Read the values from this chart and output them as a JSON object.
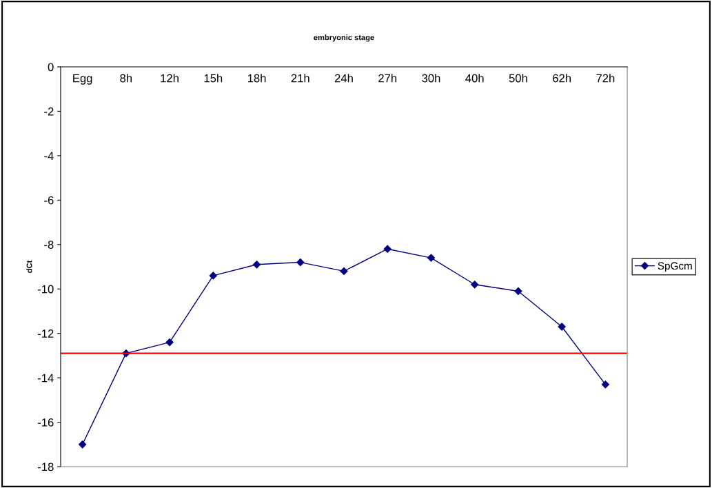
{
  "chart_data": {
    "type": "line",
    "title": "embryonic stage",
    "ylabel": "dCt",
    "categories": [
      "Egg",
      "8h",
      "12h",
      "15h",
      "18h",
      "21h",
      "24h",
      "27h",
      "30h",
      "40h",
      "50h",
      "62h",
      "72h"
    ],
    "series": [
      {
        "name": "SpGcm",
        "color": "#000080",
        "values": [
          -17.0,
          -12.9,
          -12.4,
          -9.4,
          -8.9,
          -8.8,
          -9.2,
          -8.2,
          -8.6,
          -9.8,
          -10.1,
          -11.7,
          -14.3
        ]
      }
    ],
    "ylim": [
      -18,
      0
    ],
    "yticks": [
      -18,
      -16,
      -14,
      -12,
      -10,
      -8,
      -6,
      -4,
      -2,
      0
    ],
    "ref_lines": [
      {
        "axis": "y",
        "value": -12.9,
        "color": "#ff0000"
      }
    ],
    "marker": "diamond",
    "line_style": "solid",
    "legend": "right",
    "grid": false
  }
}
